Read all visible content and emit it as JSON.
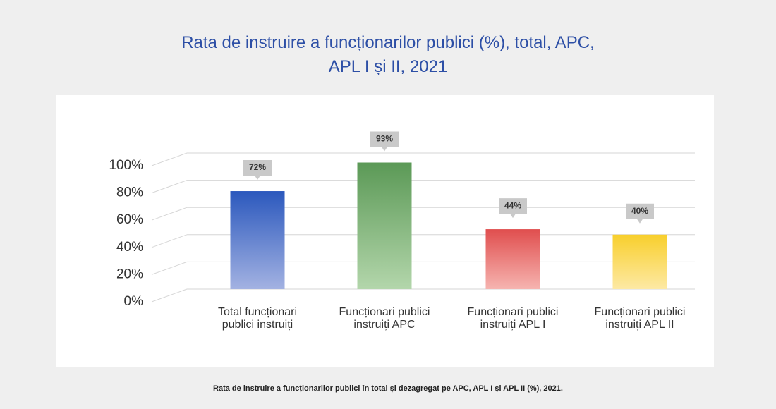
{
  "chart_data": {
    "type": "bar",
    "title": "Rata de instruire a funcționarilor publici (%), total, APC, APL I și II, 2021",
    "caption": "Rata de instruire a funcționarilor publici în total și dezagregat pe APC, APL I și APL II (%), 2021.",
    "categories": [
      "Total funcționari publici instruiți",
      "Funcționari publici instruiți APC",
      "Funcționari publici instruiți APL I",
      "Funcționari publici instruiți APL II"
    ],
    "values": [
      72,
      93,
      44,
      40
    ],
    "value_labels": [
      "72%",
      "93%",
      "44%",
      "40%"
    ],
    "colors": [
      [
        "#2b58bd",
        "#a3b2e2"
      ],
      [
        "#5b9956",
        "#b3d6ab"
      ],
      [
        "#e04e4e",
        "#f6b4b0"
      ],
      [
        "#f8cf2c",
        "#fde9a4"
      ]
    ],
    "ylim": [
      0,
      100
    ],
    "yticks": [
      {
        "value": 0,
        "label": "0%"
      },
      {
        "value": 20,
        "label": "20%"
      },
      {
        "value": 40,
        "label": "40%"
      },
      {
        "value": 60,
        "label": "60%"
      },
      {
        "value": 80,
        "label": "80%"
      },
      {
        "value": 100,
        "label": "100%"
      }
    ],
    "grid": true
  }
}
